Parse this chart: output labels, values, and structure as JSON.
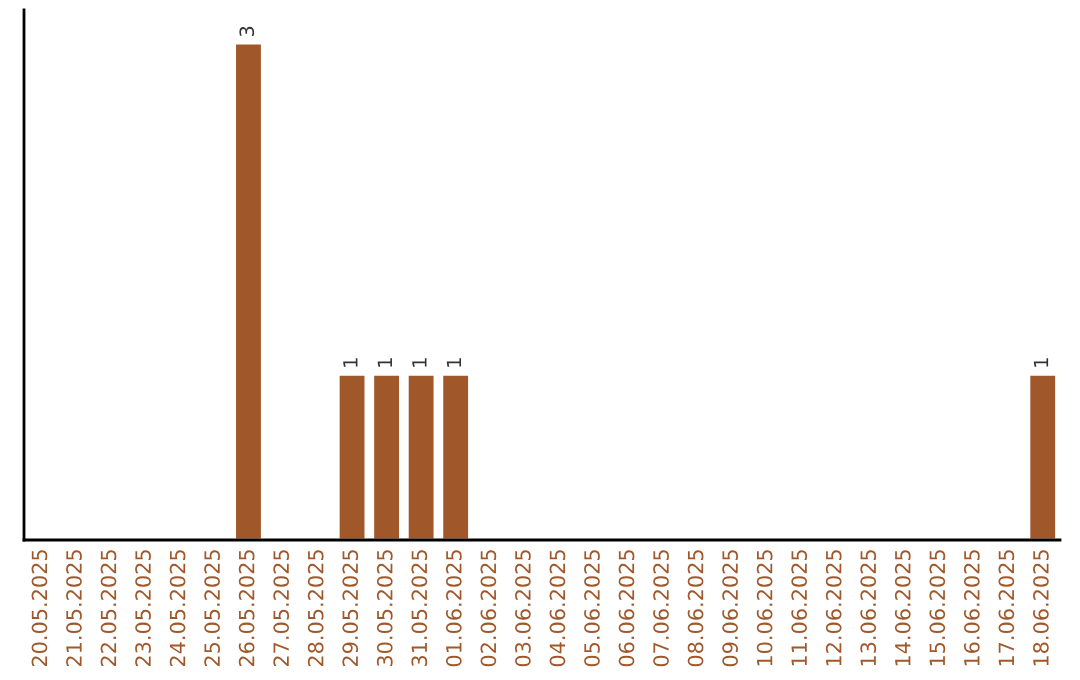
{
  "chart_data": {
    "type": "bar",
    "categories": [
      "20.05.2025",
      "21.05.2025",
      "22.05.2025",
      "23.05.2025",
      "24.05.2025",
      "25.05.2025",
      "26.05.2025",
      "27.05.2025",
      "28.05.2025",
      "29.05.2025",
      "30.05.2025",
      "31.05.2025",
      "01.06.2025",
      "02.06.2025",
      "03.06.2025",
      "04.06.2025",
      "05.06.2025",
      "06.06.2025",
      "07.06.2025",
      "08.06.2025",
      "09.06.2025",
      "10.06.2025",
      "11.06.2025",
      "12.06.2025",
      "13.06.2025",
      "14.06.2025",
      "15.06.2025",
      "16.06.2025",
      "17.06.2025",
      "18.06.2025"
    ],
    "values": [
      null,
      null,
      null,
      null,
      null,
      null,
      3,
      null,
      null,
      1,
      1,
      1,
      1,
      null,
      null,
      null,
      null,
      null,
      null,
      null,
      null,
      null,
      null,
      null,
      null,
      null,
      null,
      null,
      null,
      1
    ],
    "value_labels": [
      null,
      null,
      null,
      null,
      null,
      null,
      "3",
      null,
      null,
      "1",
      "1",
      "1",
      "1",
      null,
      null,
      null,
      null,
      null,
      null,
      null,
      null,
      null,
      null,
      null,
      null,
      null,
      null,
      null,
      null,
      "1"
    ],
    "color": "#a0582a",
    "ylim": [
      0,
      3.2
    ],
    "tick_labels": "x",
    "grid": false
  }
}
